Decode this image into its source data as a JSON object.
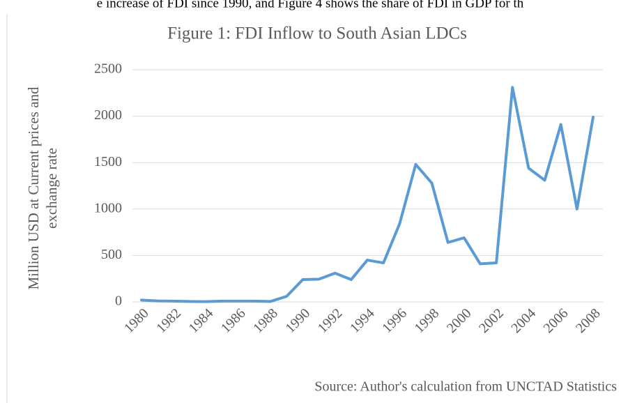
{
  "page_text": "e increase of FDI since 1990, and Figure 4 shows the share of FDI in GDP for th",
  "chart_data": {
    "type": "line",
    "title": "Figure 1: FDI Inflow to South Asian LDCs",
    "y_label": [
      "Million USD at Current prices and",
      "exchange rate"
    ],
    "source": "Source: Author's calculation from UNCTAD Statistics",
    "x": [
      1980,
      1981,
      1982,
      1983,
      1984,
      1985,
      1986,
      1987,
      1988,
      1989,
      1990,
      1991,
      1992,
      1993,
      1994,
      1995,
      1996,
      1997,
      1998,
      1999,
      2000,
      2001,
      2002,
      2003,
      2004,
      2005,
      2006,
      2007,
      2008
    ],
    "series": [
      {
        "color": "#5b9bd5",
        "values": [
          20,
          10,
          8,
          5,
          3,
          8,
          8,
          8,
          5,
          60,
          240,
          245,
          310,
          240,
          450,
          420,
          840,
          1480,
          1280,
          640,
          690,
          410,
          420,
          2310,
          1440,
          1310,
          1910,
          1000,
          1990
        ]
      }
    ],
    "xlim": [
      1980,
      2008
    ],
    "xticks": [
      1980,
      1982,
      1984,
      1986,
      1988,
      1990,
      1992,
      1994,
      1996,
      1998,
      2000,
      2002,
      2004,
      2006,
      2008
    ],
    "ylim": [
      0,
      2500
    ],
    "yticks": [
      0,
      500,
      1000,
      1500,
      2000,
      2500
    ],
    "grid": true
  }
}
